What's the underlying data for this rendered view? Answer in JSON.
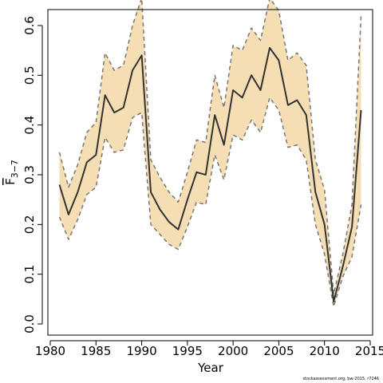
{
  "chart_data": {
    "type": "line",
    "xlabel": "Year",
    "ylabel": "F",
    "ylabel_sub": "3−7",
    "xlim": [
      1980,
      2015
    ],
    "ylim": [
      0.0,
      0.6
    ],
    "x_ticks": [
      1980,
      1985,
      1990,
      1995,
      2000,
      2005,
      2010,
      2015
    ],
    "y_ticks": [
      "0.0",
      "0.1",
      "0.2",
      "0.3",
      "0.4",
      "0.5",
      "0.6"
    ],
    "grid": false,
    "colors": {
      "band": "#f5deb3",
      "bound_line": "#777777",
      "estimate_line": "#333333"
    },
    "x": [
      1981,
      1982,
      1983,
      1984,
      1985,
      1986,
      1987,
      1988,
      1989,
      1990,
      1991,
      1992,
      1993,
      1994,
      1995,
      1996,
      1997,
      1998,
      1999,
      2000,
      2001,
      2002,
      2003,
      2004,
      2005,
      2006,
      2007,
      2008,
      2009,
      2010,
      2011,
      2012,
      2013,
      2014
    ],
    "series": [
      {
        "role": "estimate",
        "values": [
          0.28,
          0.22,
          0.265,
          0.325,
          0.34,
          0.46,
          0.425,
          0.435,
          0.51,
          0.54,
          0.265,
          0.23,
          0.205,
          0.19,
          0.25,
          0.305,
          0.3,
          0.42,
          0.36,
          0.47,
          0.455,
          0.5,
          0.47,
          0.555,
          0.53,
          0.44,
          0.45,
          0.42,
          0.265,
          0.2,
          0.045,
          0.115,
          0.195,
          0.43
        ]
      },
      {
        "role": "upper",
        "values": [
          0.345,
          0.275,
          0.32,
          0.385,
          0.405,
          0.545,
          0.51,
          0.52,
          0.6,
          0.655,
          0.33,
          0.295,
          0.265,
          0.245,
          0.305,
          0.37,
          0.365,
          0.5,
          0.435,
          0.56,
          0.55,
          0.595,
          0.57,
          0.655,
          0.63,
          0.53,
          0.545,
          0.52,
          0.33,
          0.27,
          0.06,
          0.14,
          0.24,
          0.62
        ]
      },
      {
        "role": "lower",
        "values": [
          0.215,
          0.17,
          0.21,
          0.26,
          0.275,
          0.375,
          0.345,
          0.35,
          0.415,
          0.425,
          0.2,
          0.18,
          0.16,
          0.15,
          0.195,
          0.245,
          0.24,
          0.34,
          0.29,
          0.38,
          0.37,
          0.41,
          0.385,
          0.455,
          0.43,
          0.355,
          0.36,
          0.33,
          0.2,
          0.14,
          0.035,
          0.095,
          0.135,
          0.24
        ]
      }
    ]
  },
  "footer": "stockassessment.org, bw-2015, r7246"
}
